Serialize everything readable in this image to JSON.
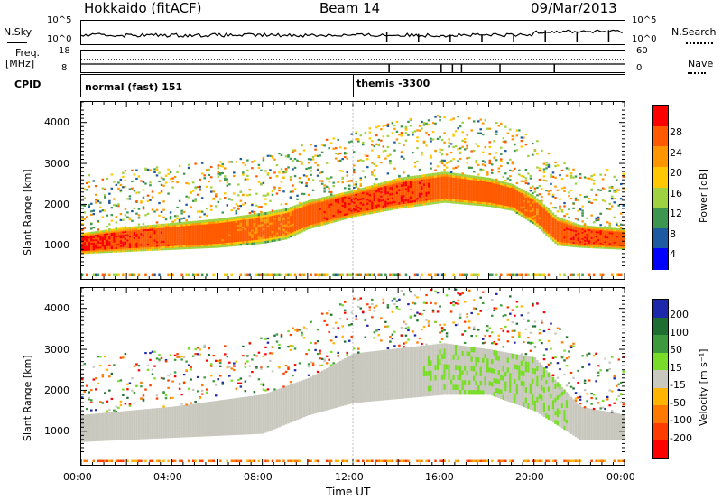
{
  "header": {
    "station": "Hokkaido (fitACF)",
    "beam": "Beam 14",
    "date": "09/Mar/2013"
  },
  "strip_labels": {
    "nsky": "N.Sky",
    "nsky_ticks": [
      "10^5",
      "10^0"
    ],
    "nsearch": "N.Search",
    "nsearch_ticks": [
      "10^5",
      "10^0"
    ],
    "freq": "Freq.",
    "freq_unit": "[MHz]",
    "freq_ticks": [
      "18",
      "8"
    ],
    "nave": "Nave",
    "nave_ticks": [
      "60",
      "0"
    ],
    "cpid": "CPID",
    "cpid_segments": [
      "normal (fast) 151",
      "themis -3300"
    ]
  },
  "panels": {
    "power": {
      "ylabel": "Slant Range [km]",
      "yticks": [
        "4000",
        "3000",
        "2000",
        "1000"
      ],
      "cbar_label": "Power [dB]",
      "cbar_ticks": [
        "28",
        "24",
        "20",
        "16",
        "12",
        "8",
        "4"
      ],
      "cbar_colors": [
        "#ff0000",
        "#ff5a00",
        "#ff9600",
        "#ffc800",
        "#9ed240",
        "#3c9650",
        "#1e5aa0",
        "#0000ff"
      ]
    },
    "velocity": {
      "ylabel": "Slant Range [km]",
      "yticks": [
        "4000",
        "3000",
        "2000",
        "1000"
      ],
      "cbar_label": "Velocity [m s⁻¹]",
      "cbar_ticks": [
        "200",
        "100",
        "50",
        "15",
        "-15",
        "-50",
        "-100",
        "-200"
      ],
      "cbar_colors": [
        "#1e28aa",
        "#1e6e32",
        "#3c9a3c",
        "#78dc28",
        "#c8c8be",
        "#ffb400",
        "#ff7800",
        "#ff3c00",
        "#ff0000"
      ]
    }
  },
  "xaxis": {
    "ticks": [
      "00:00",
      "04:00",
      "08:00",
      "12:00",
      "16:00",
      "20:00",
      "00:00"
    ],
    "label": "Time UT"
  },
  "chart_data": {
    "type": "heatmap",
    "title": "Hokkaido (fitACF) Beam 14 09/Mar/2013",
    "xlabel": "Time UT",
    "ylabel": "Slant Range [km]",
    "x_range_hours": [
      0,
      24
    ],
    "y_range_km": [
      180,
      4500
    ],
    "power_scale_db": [
      0,
      30
    ],
    "velocity_scale_ms": [
      -200,
      200
    ],
    "power_main_band": [
      {
        "t": 0,
        "lo": 800,
        "hi": 1300,
        "db": 28
      },
      {
        "t": 2,
        "lo": 850,
        "hi": 1450,
        "db": 27
      },
      {
        "t": 4,
        "lo": 900,
        "hi": 1550,
        "db": 26
      },
      {
        "t": 6,
        "lo": 950,
        "hi": 1650,
        "db": 25
      },
      {
        "t": 8,
        "lo": 1050,
        "hi": 1800,
        "db": 24
      },
      {
        "t": 9,
        "lo": 1150,
        "hi": 1900,
        "db": 24
      },
      {
        "t": 10,
        "lo": 1400,
        "hi": 2100,
        "db": 26
      },
      {
        "t": 12,
        "lo": 1700,
        "hi": 2350,
        "db": 27
      },
      {
        "t": 14,
        "lo": 1900,
        "hi": 2650,
        "db": 27
      },
      {
        "t": 16,
        "lo": 2050,
        "hi": 2800,
        "db": 26
      },
      {
        "t": 18,
        "lo": 1950,
        "hi": 2650,
        "db": 25
      },
      {
        "t": 19,
        "lo": 1850,
        "hi": 2500,
        "db": 25
      },
      {
        "t": 20,
        "lo": 1500,
        "hi": 2200,
        "db": 24
      },
      {
        "t": 21,
        "lo": 1000,
        "hi": 1700,
        "db": 26
      },
      {
        "t": 22,
        "lo": 950,
        "hi": 1500,
        "db": 27
      },
      {
        "t": 24,
        "lo": 900,
        "hi": 1400,
        "db": 26
      }
    ],
    "velocity_main_band": [
      {
        "t": 0,
        "lo": 750,
        "hi": 1400,
        "v": 0
      },
      {
        "t": 4,
        "lo": 850,
        "hi": 1600,
        "v": 0
      },
      {
        "t": 8,
        "lo": 950,
        "hi": 1900,
        "v": 0
      },
      {
        "t": 10,
        "lo": 1400,
        "hi": 2300,
        "v": 0
      },
      {
        "t": 12,
        "lo": 1700,
        "hi": 2900,
        "v": 0
      },
      {
        "t": 16,
        "lo": 1900,
        "hi": 3150,
        "v": 0
      },
      {
        "t": 18,
        "lo": 1900,
        "hi": 3000,
        "v": 0
      },
      {
        "t": 20,
        "lo": 1500,
        "hi": 2800,
        "v": 0
      },
      {
        "t": 22,
        "lo": 800,
        "hi": 1600,
        "v": 0
      },
      {
        "t": 24,
        "lo": 800,
        "hi": 1400,
        "v": 0
      }
    ],
    "cpid_changes_hours": [
      0,
      12
    ]
  }
}
